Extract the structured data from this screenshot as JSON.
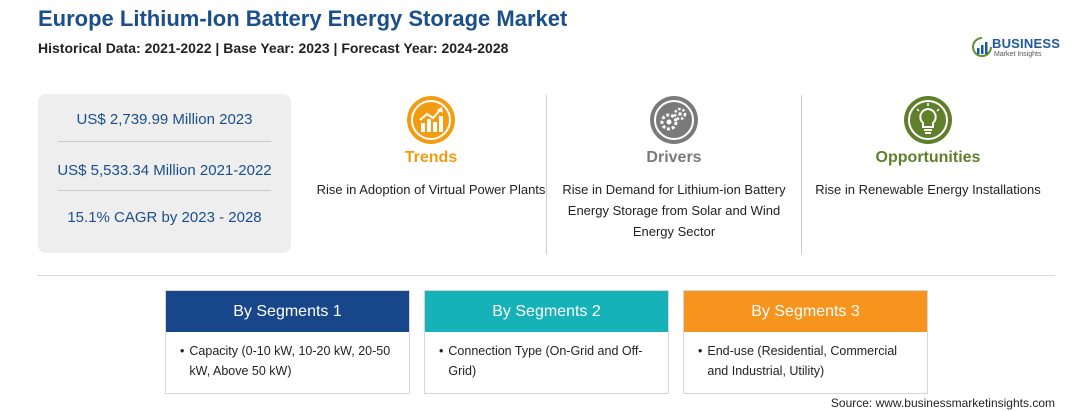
{
  "header": {
    "title": "Europe Lithium-Ion Battery Energy Storage Market",
    "subtitle": "Historical Data: 2021-2022 | Base Year: 2023 | Forecast Year: 2024-2028"
  },
  "logo": {
    "name": "BUSINESS",
    "tagline": "Market Insights",
    "color": "#1d5a9a"
  },
  "stats": [
    "US$ 2,739.99 Million 2023",
    "US$ 5,533.34 Million 2021-2022",
    "15.1% CAGR by 2023 - 2028"
  ],
  "features": [
    {
      "title": "Trends",
      "text": "Rise in Adoption of Virtual Power Plants",
      "icon": "trend-chart-icon",
      "color": "#f29c12"
    },
    {
      "title": "Drivers",
      "text": "Rise in Demand for Lithium-ion Battery Energy Storage from Solar and Wind Energy Sector",
      "icon": "gears-icon",
      "color": "#7a7a7a"
    },
    {
      "title": "Opportunities",
      "text": "Rise in Renewable Energy Installations",
      "icon": "lightbulb-icon",
      "color": "#5f7f2a"
    }
  ],
  "segments": [
    {
      "title": "By Segments 1",
      "text": "Capacity (0-10 kW, 10-20 kW, 20-50 kW, Above 50 kW)",
      "color": "#17468b"
    },
    {
      "title": "By Segments 2",
      "text": "Connection Type (On-Grid and Off-Grid)",
      "color": "#16b2b7"
    },
    {
      "title": "By Segments 3",
      "text": "End-use (Residential, Commercial and Industrial, Utility)",
      "color": "#f7941d"
    }
  ],
  "source": "Source: www.businessmarketinsights.com"
}
